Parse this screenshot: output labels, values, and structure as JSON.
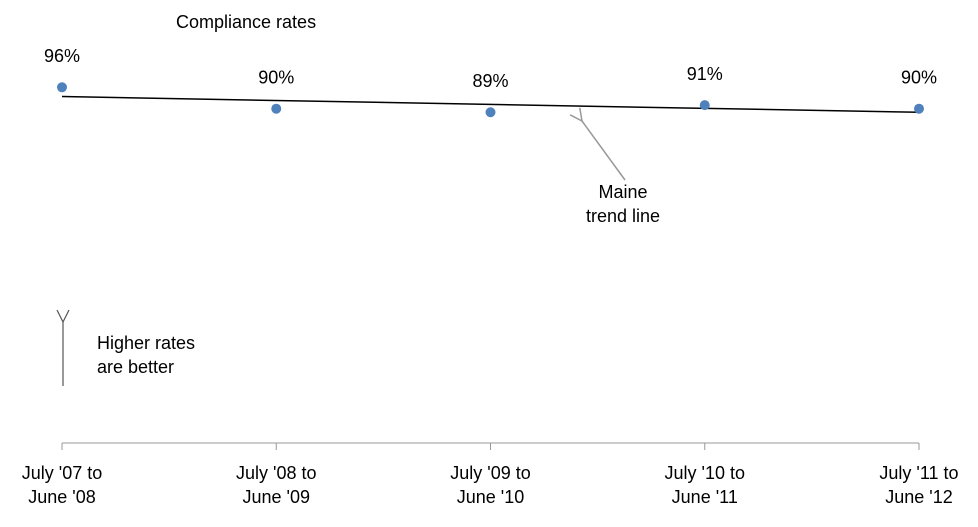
{
  "chart_data": {
    "type": "scatter",
    "title": "Compliance rates",
    "categories": [
      "July '07 to\nJune '08",
      "July '08 to\nJune '09",
      "July '09 to\nJune '10",
      "July '10 to\nJune '11",
      "July '11 to\nJune '12"
    ],
    "values": [
      96,
      90,
      89,
      91,
      90
    ],
    "value_labels": [
      "96%",
      "90%",
      "89%",
      "91%",
      "90%"
    ],
    "color": "#4f81bd",
    "ylim": [
      0,
      100
    ],
    "trendline": "linear",
    "annotations": [
      "Maine\ntrend line",
      "Higher rates\nare better"
    ]
  }
}
